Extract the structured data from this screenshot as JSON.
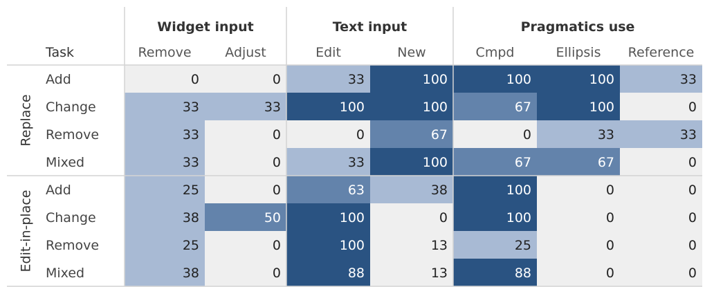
{
  "chart_data": {
    "type": "heatmap",
    "title": "",
    "corner_label": "Task",
    "column_groups": [
      {
        "name": "Widget input",
        "columns": [
          "Remove",
          "Adjust"
        ]
      },
      {
        "name": "Text input",
        "columns": [
          "Edit",
          "New"
        ]
      },
      {
        "name": "Pragmatics use",
        "columns": [
          "Cmpd",
          "Ellipsis",
          "Reference"
        ]
      }
    ],
    "row_groups": [
      {
        "name": "Replace",
        "rows": [
          "Add",
          "Change",
          "Remove",
          "Mixed"
        ]
      },
      {
        "name": "Edit-in-place",
        "rows": [
          "Add",
          "Change",
          "Remove",
          "Mixed"
        ]
      }
    ],
    "values": [
      [
        0,
        0,
        33,
        100,
        100,
        100,
        33
      ],
      [
        33,
        33,
        100,
        100,
        67,
        100,
        0
      ],
      [
        33,
        0,
        0,
        67,
        0,
        33,
        33
      ],
      [
        33,
        0,
        33,
        100,
        67,
        67,
        0
      ],
      [
        25,
        0,
        63,
        38,
        100,
        0,
        0
      ],
      [
        38,
        50,
        100,
        0,
        100,
        0,
        0
      ],
      [
        25,
        0,
        100,
        13,
        25,
        0,
        0
      ],
      [
        38,
        0,
        88,
        13,
        88,
        0,
        0
      ]
    ],
    "value_range": [
      0,
      100
    ],
    "color_scale": {
      "low": "#efefef",
      "light": "#a8bad4",
      "mid": "#6383ab",
      "high": "#2a5382"
    },
    "legend": "none",
    "grid": false
  }
}
